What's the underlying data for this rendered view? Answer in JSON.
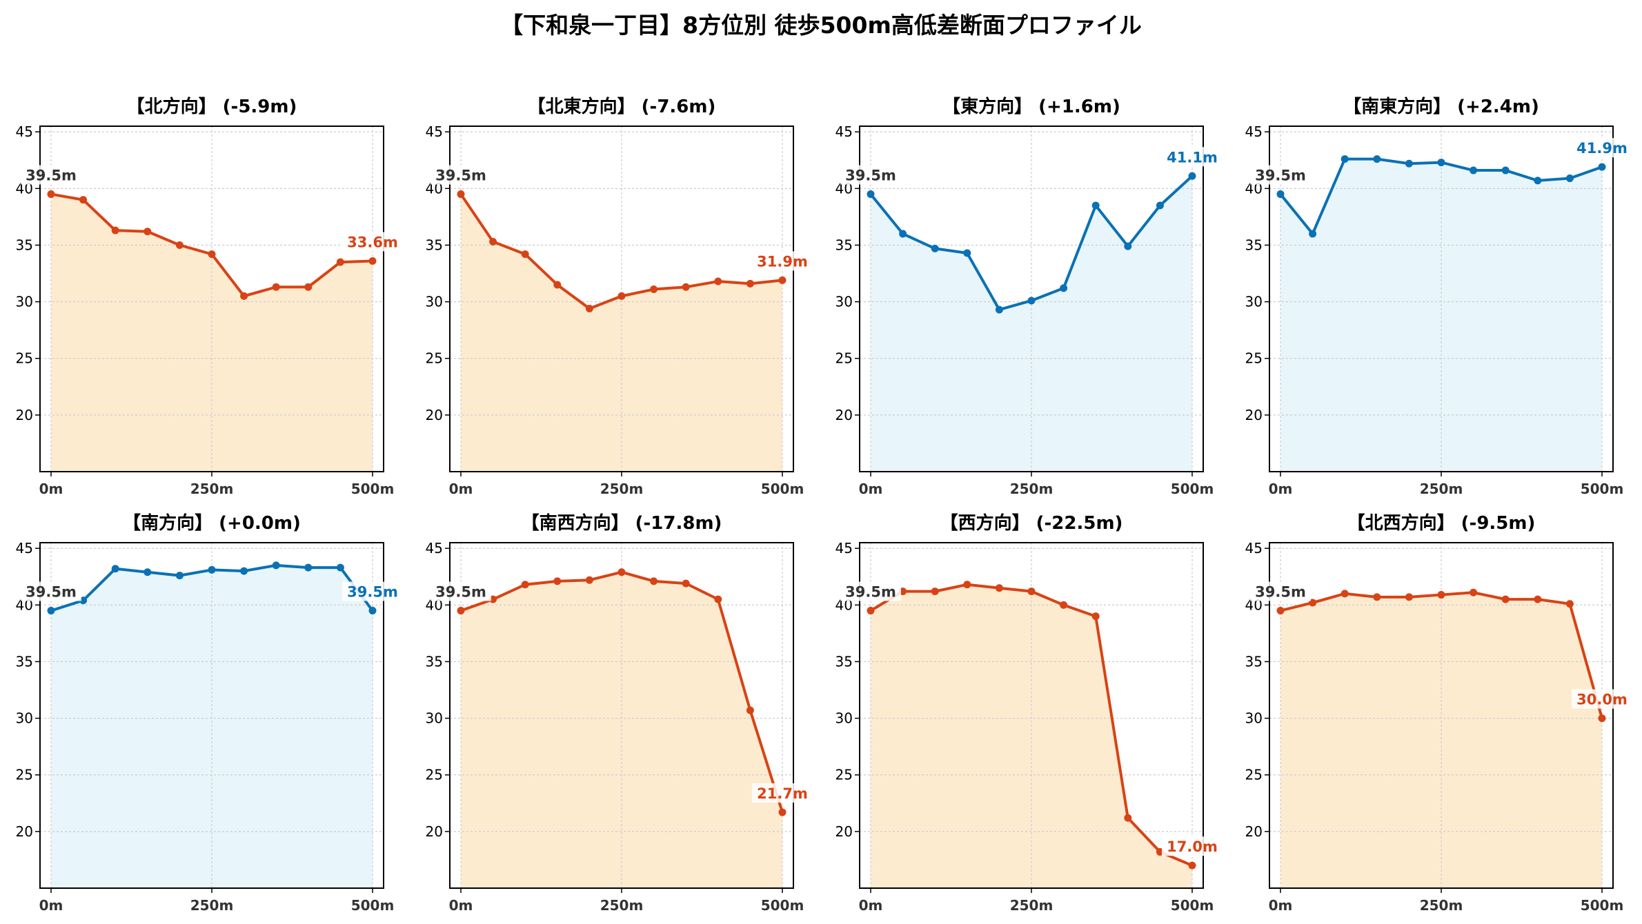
{
  "title": "【下和泉一丁目】8方位別 徒歩500m高低差断面プロファイル",
  "colors": {
    "down_line": "#d84315",
    "down_fill": "#fdebd0",
    "up_line": "#0a71b5",
    "up_fill": "#e8f5fb",
    "start_label": "#333333",
    "grid": "#cccccc"
  },
  "chart_data": [
    {
      "type": "area",
      "title": "【北方向】 (-5.9m)",
      "trend": "down",
      "x": [
        0,
        50,
        100,
        150,
        200,
        250,
        300,
        350,
        400,
        450,
        500
      ],
      "y": [
        39.5,
        39.0,
        36.3,
        36.2,
        35.0,
        34.2,
        30.5,
        31.3,
        31.3,
        33.5,
        33.6
      ],
      "start_label": "39.5m",
      "end_label": "33.6m",
      "ylim": [
        15,
        45.5
      ],
      "yticks": [
        20,
        25,
        30,
        35,
        40,
        45
      ],
      "xticks": [
        0,
        250,
        500
      ],
      "xtick_labels": [
        "0m",
        "250m",
        "500m"
      ],
      "grid": true
    },
    {
      "type": "area",
      "title": "【北東方向】 (-7.6m)",
      "trend": "down",
      "x": [
        0,
        50,
        100,
        150,
        200,
        250,
        300,
        350,
        400,
        450,
        500
      ],
      "y": [
        39.5,
        35.3,
        34.2,
        31.5,
        29.4,
        30.5,
        31.1,
        31.3,
        31.8,
        31.6,
        31.9
      ],
      "start_label": "39.5m",
      "end_label": "31.9m",
      "ylim": [
        15,
        45.5
      ],
      "yticks": [
        20,
        25,
        30,
        35,
        40,
        45
      ],
      "xticks": [
        0,
        250,
        500
      ],
      "xtick_labels": [
        "0m",
        "250m",
        "500m"
      ],
      "grid": true
    },
    {
      "type": "area",
      "title": "【東方向】 (+1.6m)",
      "trend": "up",
      "x": [
        0,
        50,
        100,
        150,
        200,
        250,
        300,
        350,
        400,
        450,
        500
      ],
      "y": [
        39.5,
        36.0,
        34.7,
        34.3,
        29.3,
        30.1,
        31.2,
        38.5,
        34.9,
        38.5,
        41.1
      ],
      "start_label": "39.5m",
      "end_label": "41.1m",
      "ylim": [
        15,
        45.5
      ],
      "yticks": [
        20,
        25,
        30,
        35,
        40,
        45
      ],
      "xticks": [
        0,
        250,
        500
      ],
      "xtick_labels": [
        "0m",
        "250m",
        "500m"
      ],
      "grid": true
    },
    {
      "type": "area",
      "title": "【南東方向】 (+2.4m)",
      "trend": "up",
      "x": [
        0,
        50,
        100,
        150,
        200,
        250,
        300,
        350,
        400,
        450,
        500
      ],
      "y": [
        39.5,
        36.0,
        42.6,
        42.6,
        42.2,
        42.3,
        41.6,
        41.6,
        40.7,
        40.9,
        41.9
      ],
      "start_label": "39.5m",
      "end_label": "41.9m",
      "ylim": [
        15,
        45.5
      ],
      "yticks": [
        20,
        25,
        30,
        35,
        40,
        45
      ],
      "xticks": [
        0,
        250,
        500
      ],
      "xtick_labels": [
        "0m",
        "250m",
        "500m"
      ],
      "grid": true
    },
    {
      "type": "area",
      "title": "【南方向】 (+0.0m)",
      "trend": "up",
      "x": [
        0,
        50,
        100,
        150,
        200,
        250,
        300,
        350,
        400,
        450,
        500
      ],
      "y": [
        39.5,
        40.4,
        43.2,
        42.9,
        42.6,
        43.1,
        43.0,
        43.5,
        43.3,
        43.3,
        39.5
      ],
      "start_label": "39.5m",
      "end_label": "39.5m",
      "ylim": [
        15,
        45.5
      ],
      "yticks": [
        20,
        25,
        30,
        35,
        40,
        45
      ],
      "xticks": [
        0,
        250,
        500
      ],
      "xtick_labels": [
        "0m",
        "250m",
        "500m"
      ],
      "grid": true
    },
    {
      "type": "area",
      "title": "【南西方向】 (-17.8m)",
      "trend": "down",
      "x": [
        0,
        50,
        100,
        150,
        200,
        250,
        300,
        350,
        400,
        450,
        500
      ],
      "y": [
        39.5,
        40.5,
        41.8,
        42.1,
        42.2,
        42.9,
        42.1,
        41.9,
        40.5,
        30.7,
        21.7
      ],
      "start_label": "39.5m",
      "end_label": "21.7m",
      "ylim": [
        15,
        45.5
      ],
      "yticks": [
        20,
        25,
        30,
        35,
        40,
        45
      ],
      "xticks": [
        0,
        250,
        500
      ],
      "xtick_labels": [
        "0m",
        "250m",
        "500m"
      ],
      "grid": true
    },
    {
      "type": "area",
      "title": "【西方向】 (-22.5m)",
      "trend": "down",
      "x": [
        0,
        50,
        100,
        150,
        200,
        250,
        300,
        350,
        400,
        450,
        500
      ],
      "y": [
        39.5,
        41.2,
        41.2,
        41.8,
        41.5,
        41.2,
        40.0,
        39.0,
        21.2,
        18.2,
        17.0
      ],
      "start_label": "39.5m",
      "end_label": "17.0m",
      "ylim": [
        15,
        45.5
      ],
      "yticks": [
        20,
        25,
        30,
        35,
        40,
        45
      ],
      "xticks": [
        0,
        250,
        500
      ],
      "xtick_labels": [
        "0m",
        "250m",
        "500m"
      ],
      "grid": true
    },
    {
      "type": "area",
      "title": "【北西方向】 (-9.5m)",
      "trend": "down",
      "x": [
        0,
        50,
        100,
        150,
        200,
        250,
        300,
        350,
        400,
        450,
        500
      ],
      "y": [
        39.5,
        40.2,
        41.0,
        40.7,
        40.7,
        40.9,
        41.1,
        40.5,
        40.5,
        40.1,
        30.0
      ],
      "start_label": "39.5m",
      "end_label": "30.0m",
      "ylim": [
        15,
        45.5
      ],
      "yticks": [
        20,
        25,
        30,
        35,
        40,
        45
      ],
      "xticks": [
        0,
        250,
        500
      ],
      "xtick_labels": [
        "0m",
        "250m",
        "500m"
      ],
      "grid": true
    }
  ]
}
